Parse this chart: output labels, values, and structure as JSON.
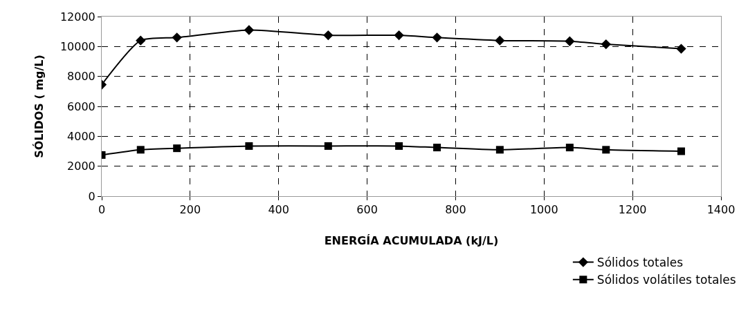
{
  "chart_data": {
    "type": "line",
    "xlabel": "ENERGÍA ACUMULADA (kJ/L)",
    "ylabel": "SÓLIDOS ( mg/L)",
    "x": [
      0,
      88,
      170,
      333,
      512,
      672,
      758,
      900,
      1058,
      1140,
      1310
    ],
    "series": [
      {
        "name": "Sólidos totales",
        "color": "#000000",
        "marker": "diamond",
        "values": [
          7450,
          10400,
          10600,
          11100,
          10750,
          10750,
          10600,
          10400,
          10350,
          10150,
          9850
        ]
      },
      {
        "name": "Sólidos volátiles totales",
        "color": "#000000",
        "marker": "square",
        "values": [
          2750,
          3100,
          3200,
          3350,
          3350,
          3350,
          3250,
          3100,
          3250,
          3100,
          3000
        ]
      }
    ],
    "xlim": [
      0,
      1400
    ],
    "xticks": [
      0,
      200,
      400,
      600,
      800,
      1000,
      1200,
      1400
    ],
    "ylim": [
      0,
      12000
    ],
    "yticks": [
      0,
      2000,
      4000,
      6000,
      8000,
      10000,
      12000
    ],
    "grid": true,
    "legend": "bottom right",
    "line_style": "solid"
  }
}
